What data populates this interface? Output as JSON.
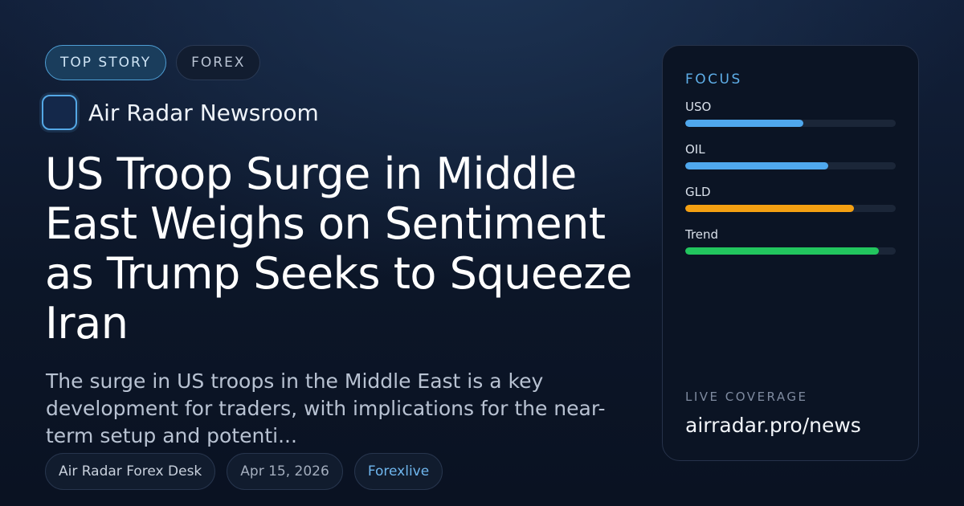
{
  "tags": {
    "top_story": "TOP STORY",
    "category": "FOREX"
  },
  "brand": {
    "name": "Air Radar Newsroom"
  },
  "article": {
    "headline": "US Troop Surge in Middle East Weighs on Sentiment as Trump Seeks to Squeeze Iran",
    "summary": "The surge in US troops in the Middle East is a key development for traders, with implications for the near-term setup and potenti..."
  },
  "meta": {
    "desk": "Air Radar Forex Desk",
    "date": "Apr 15, 2026",
    "source": "Forexlive"
  },
  "focus": {
    "title": "FOCUS",
    "items": [
      {
        "label": "USO",
        "level": 0.56,
        "color": "#4fa8ee"
      },
      {
        "label": "OIL",
        "level": 0.68,
        "color": "#4fa8ee"
      },
      {
        "label": "GLD",
        "level": 0.8,
        "color": "#f4a012"
      },
      {
        "label": "Trend",
        "level": 0.92,
        "color": "#22c55e"
      }
    ]
  },
  "coverage": {
    "label": "LIVE COVERAGE",
    "link": "airradar.pro/news"
  }
}
